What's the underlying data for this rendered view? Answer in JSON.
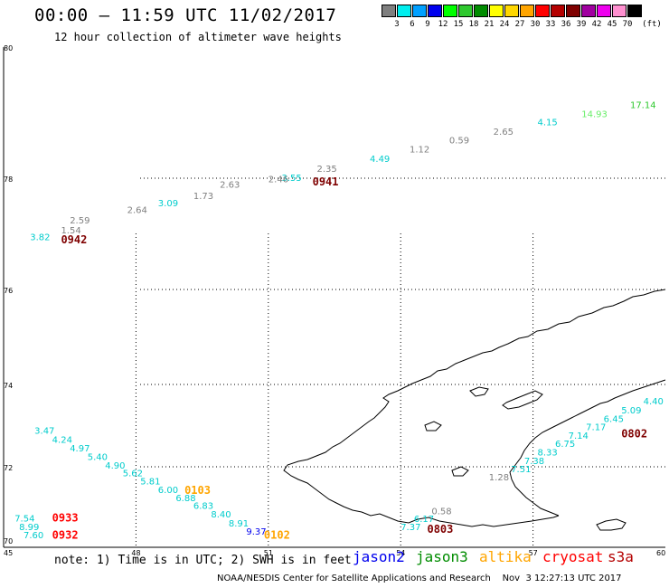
{
  "header": {
    "title": "00:00 — 11:59 UTC 11/02/2017",
    "subtitle": "12 hour collection of altimeter wave heights"
  },
  "legend": {
    "unit": "(ft)",
    "bins": [
      {
        "label": "3",
        "color": "#7f7f7f"
      },
      {
        "label": "6",
        "color": "#00eeee"
      },
      {
        "label": "9",
        "color": "#00a0ff"
      },
      {
        "label": "12",
        "color": "#0000ee"
      },
      {
        "label": "15",
        "color": "#00ff00"
      },
      {
        "label": "18",
        "color": "#2ec82e"
      },
      {
        "label": "21",
        "color": "#008c00"
      },
      {
        "label": "24",
        "color": "#ffff00"
      },
      {
        "label": "27",
        "color": "#ffd700"
      },
      {
        "label": "30",
        "color": "#ffa500"
      },
      {
        "label": "33",
        "color": "#ff0000"
      },
      {
        "label": "36",
        "color": "#b40000"
      },
      {
        "label": "39",
        "color": "#7f0000"
      },
      {
        "label": "42",
        "color": "#a000a0"
      },
      {
        "label": "45",
        "color": "#ee00ee"
      },
      {
        "label": "70",
        "color": "#ff90d0"
      },
      {
        "label": "",
        "color": "#000000"
      }
    ]
  },
  "axes": {
    "lat_labels": [
      "80",
      "78",
      "76",
      "74",
      "72",
      "70"
    ],
    "lon_labels": [
      "45",
      "48",
      "51",
      "54",
      "57",
      "60"
    ]
  },
  "observations": [
    {
      "value": "17.14",
      "lon": 59.2,
      "lat": 79.07,
      "color": "#2ec82e"
    },
    {
      "value": "14.93",
      "lon": 58.1,
      "lat": 78.93,
      "color": "#66ee66"
    },
    {
      "value": "4.15",
      "lon": 57.1,
      "lat": 78.81,
      "color": "#00cccc"
    },
    {
      "value": "2.65",
      "lon": 56.1,
      "lat": 78.66,
      "color": "#7f7f7f"
    },
    {
      "value": "0.59",
      "lon": 55.1,
      "lat": 78.53,
      "color": "#7f7f7f"
    },
    {
      "value": "1.12",
      "lon": 54.2,
      "lat": 78.39,
      "color": "#7f7f7f"
    },
    {
      "value": "4.49",
      "lon": 53.3,
      "lat": 78.25,
      "color": "#00cccc"
    },
    {
      "value": "2.35",
      "lon": 52.1,
      "lat": 78.1,
      "color": "#7f7f7f"
    },
    {
      "value": "3.55",
      "lon": 51.3,
      "lat": 77.95,
      "color": "#00cccc"
    },
    {
      "value": "2.46",
      "lon": 51.0,
      "lat": 77.93,
      "color": "#7f7f7f"
    },
    {
      "value": "2.63",
      "lon": 49.9,
      "lat": 77.83,
      "color": "#7f7f7f"
    },
    {
      "value": "1.73",
      "lon": 49.3,
      "lat": 77.63,
      "color": "#7f7f7f"
    },
    {
      "value": "3.09",
      "lon": 48.5,
      "lat": 77.5,
      "color": "#00cccc"
    },
    {
      "value": "2.64",
      "lon": 47.8,
      "lat": 77.37,
      "color": "#7f7f7f"
    },
    {
      "value": "2.59",
      "lon": 46.5,
      "lat": 77.19,
      "color": "#7f7f7f"
    },
    {
      "value": "1.54",
      "lon": 46.3,
      "lat": 77.01,
      "color": "#7f7f7f"
    },
    {
      "value": "3.82",
      "lon": 45.6,
      "lat": 76.89,
      "color": "#00cccc"
    },
    {
      "value": "3.47",
      "lon": 45.7,
      "lat": 72.8,
      "color": "#00cccc"
    },
    {
      "value": "4.24",
      "lon": 46.1,
      "lat": 72.58,
      "color": "#00cccc"
    },
    {
      "value": "4.97",
      "lon": 46.5,
      "lat": 72.37,
      "color": "#00cccc"
    },
    {
      "value": "5.40",
      "lon": 46.9,
      "lat": 72.17,
      "color": "#00cccc"
    },
    {
      "value": "4.90",
      "lon": 47.3,
      "lat": 71.96,
      "color": "#00cccc"
    },
    {
      "value": "5.62",
      "lon": 47.7,
      "lat": 71.76,
      "color": "#00cccc"
    },
    {
      "value": "5.81",
      "lon": 48.1,
      "lat": 71.56,
      "color": "#00cccc"
    },
    {
      "value": "6.00",
      "lon": 48.5,
      "lat": 71.35,
      "color": "#00cccc"
    },
    {
      "value": "6.88",
      "lon": 48.9,
      "lat": 71.15,
      "color": "#00cccc"
    },
    {
      "value": "6.83",
      "lon": 49.3,
      "lat": 70.95,
      "color": "#00cccc"
    },
    {
      "value": "8.40",
      "lon": 49.7,
      "lat": 70.74,
      "color": "#00cccc"
    },
    {
      "value": "8.91",
      "lon": 50.1,
      "lat": 70.52,
      "color": "#00cccc"
    },
    {
      "value": "9.37",
      "lon": 50.5,
      "lat": 70.31,
      "color": "#0000ee"
    },
    {
      "value": "7.54",
      "lon": 45.25,
      "lat": 70.64,
      "color": "#00cccc"
    },
    {
      "value": "8.99",
      "lon": 45.35,
      "lat": 70.43,
      "color": "#00cccc"
    },
    {
      "value": "7.60",
      "lon": 45.45,
      "lat": 70.22,
      "color": "#00cccc"
    },
    {
      "value": "7.37",
      "lon": 54.0,
      "lat": 70.43,
      "color": "#00cccc"
    },
    {
      "value": "6.17",
      "lon": 54.3,
      "lat": 70.63,
      "color": "#00cccc"
    },
    {
      "value": "0.58",
      "lon": 54.7,
      "lat": 70.82,
      "color": "#7f7f7f"
    },
    {
      "value": "1.28",
      "lon": 56.0,
      "lat": 71.66,
      "color": "#7f7f7f"
    },
    {
      "value": "7.51",
      "lon": 56.5,
      "lat": 71.87,
      "color": "#00cccc"
    },
    {
      "value": "7.38",
      "lon": 56.8,
      "lat": 72.07,
      "color": "#00cccc"
    },
    {
      "value": "8.33",
      "lon": 57.1,
      "lat": 72.28,
      "color": "#00cccc"
    },
    {
      "value": "6.75",
      "lon": 57.5,
      "lat": 72.48,
      "color": "#00cccc"
    },
    {
      "value": "7.14",
      "lon": 57.8,
      "lat": 72.68,
      "color": "#00cccc"
    },
    {
      "value": "7.17",
      "lon": 58.2,
      "lat": 72.89,
      "color": "#00cccc"
    },
    {
      "value": "6.45",
      "lon": 58.6,
      "lat": 73.09,
      "color": "#00cccc"
    },
    {
      "value": "5.09",
      "lon": 59.0,
      "lat": 73.3,
      "color": "#00cccc"
    },
    {
      "value": "4.40",
      "lon": 59.5,
      "lat": 73.52,
      "color": "#00cccc"
    }
  ],
  "pass_times": [
    {
      "label": "0941",
      "lon": 52.0,
      "lat": 77.87,
      "color": "#7f0000"
    },
    {
      "label": "0942",
      "lon": 46.3,
      "lat": 76.83,
      "color": "#7f0000"
    },
    {
      "label": "0103",
      "lon": 49.1,
      "lat": 71.33,
      "color": "#ffa500"
    },
    {
      "label": "0102",
      "lon": 50.9,
      "lat": 70.21,
      "color": "#ffa500"
    },
    {
      "label": "0933",
      "lon": 46.1,
      "lat": 70.64,
      "color": "#ff0000"
    },
    {
      "label": "0932",
      "lon": 46.1,
      "lat": 70.21,
      "color": "#ff0000"
    },
    {
      "label": "0803",
      "lon": 54.6,
      "lat": 70.36,
      "color": "#7f0000"
    },
    {
      "label": "0802",
      "lon": 59.0,
      "lat": 72.71,
      "color": "#7f0000"
    }
  ],
  "footer": {
    "note": "note: 1) Time is in UTC; 2) SWH is in feet",
    "satellites": [
      {
        "name": "jason2",
        "color": "#0000ee"
      },
      {
        "name": "jason3",
        "color": "#008c00"
      },
      {
        "name": "altika",
        "color": "#ffa500"
      },
      {
        "name": "cryosat",
        "color": "#ff0000"
      },
      {
        "name": "s3a",
        "color": "#b40000"
      }
    ],
    "credit": "NOAA/NESDIS Center for Satellite Applications and Research    Nov  3 12:27:13 UTC 2017"
  }
}
